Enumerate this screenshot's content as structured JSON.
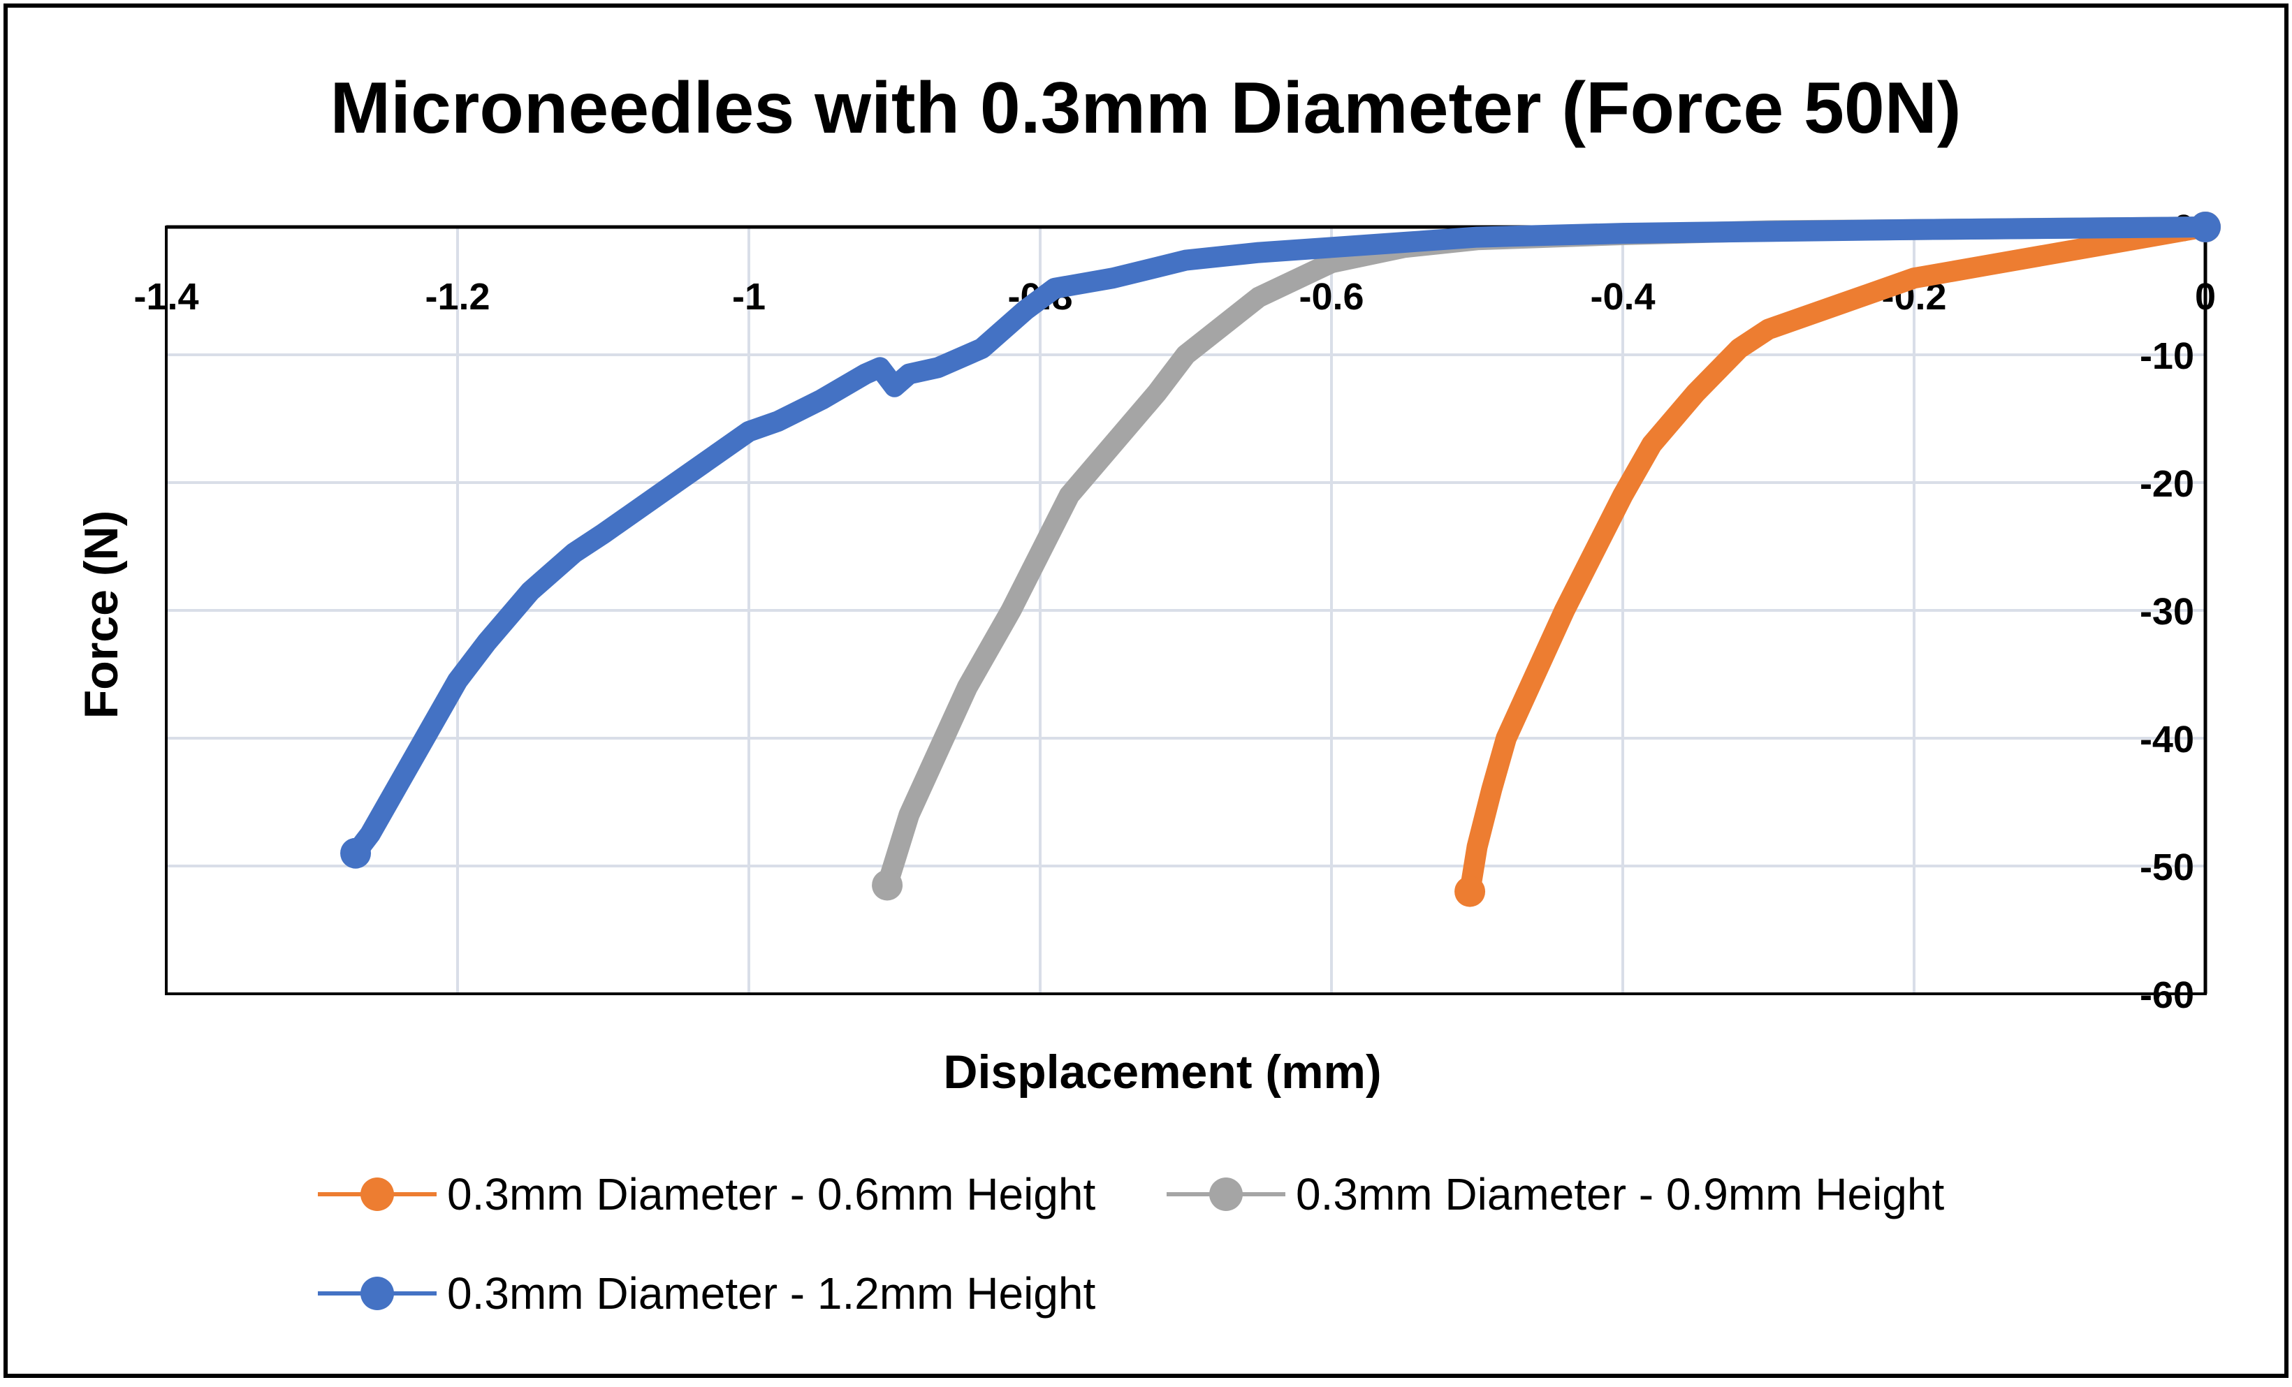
{
  "chart_data": {
    "type": "line",
    "title": "Microneedles with 0.3mm Diameter (Force 50N)",
    "xlabel": "Displacement (mm)",
    "ylabel": "Force (N)",
    "xlim": [
      -1.4,
      0
    ],
    "ylim": [
      -60,
      0
    ],
    "x_ticks": [
      -1.4,
      -1.2,
      -1,
      -0.8,
      -0.6,
      -0.4,
      -0.2,
      0
    ],
    "x_tick_labels": [
      "-1.4",
      "-1.2",
      "-1",
      "-0.8",
      "-0.6",
      "-0.4",
      "-0.2",
      "0"
    ],
    "y_ticks": [
      0,
      -10,
      -20,
      -30,
      -40,
      -50,
      -60
    ],
    "y_tick_labels": [
      "0",
      "-10",
      "-20",
      "-30",
      "-40",
      "-50",
      "-60"
    ],
    "grid": true,
    "x_axis_position": "top",
    "y_axis_position": "right",
    "legend_position": "bottom",
    "series": [
      {
        "name": "0.3mm Diameter - 0.6mm Height",
        "color": "#ED7D31",
        "x": [
          0,
          -0.05,
          -0.1,
          -0.15,
          -0.2,
          -0.25,
          -0.3,
          -0.32,
          -0.35,
          -0.38,
          -0.4,
          -0.42,
          -0.44,
          -0.46,
          -0.48,
          -0.49,
          -0.5,
          -0.505
        ],
        "y": [
          0,
          -1,
          -2,
          -3,
          -4,
          -6,
          -8,
          -9.5,
          -13,
          -17,
          -21,
          -25.5,
          -30,
          -35,
          -40,
          -44,
          -48.5,
          -52
        ]
      },
      {
        "name": "0.3mm Diameter - 0.9mm Height",
        "color": "#A5A5A5",
        "x": [
          0,
          -0.1,
          -0.2,
          -0.3,
          -0.4,
          -0.5,
          -0.55,
          -0.6,
          -0.65,
          -0.7,
          -0.72,
          -0.75,
          -0.78,
          -0.8,
          -0.82,
          -0.85,
          -0.87,
          -0.89,
          -0.905
        ],
        "y": [
          0,
          -0.1,
          -0.2,
          -0.3,
          -0.6,
          -1,
          -1.6,
          -2.8,
          -5.5,
          -10,
          -13,
          -17,
          -21,
          -25.5,
          -30,
          -36,
          -41,
          -46,
          -51.5
        ]
      },
      {
        "name": "0.3mm Diameter - 1.2mm Height",
        "color": "#4472C4",
        "x": [
          0,
          -0.2,
          -0.4,
          -0.5,
          -0.55,
          -0.6,
          -0.65,
          -0.7,
          -0.75,
          -0.77,
          -0.79,
          -0.81,
          -0.84,
          -0.87,
          -0.89,
          -0.9,
          -0.91,
          -0.92,
          -0.95,
          -0.98,
          -1,
          -1.05,
          -1.1,
          -1.12,
          -1.15,
          -1.18,
          -1.2,
          -1.22,
          -1.24,
          -1.26,
          -1.27
        ],
        "y": [
          0,
          -0.2,
          -0.5,
          -0.8,
          -1.2,
          -1.6,
          -2,
          -2.6,
          -4,
          -4.4,
          -4.8,
          -6.5,
          -9.5,
          -11,
          -11.5,
          -12.5,
          -11,
          -11.5,
          -13.5,
          -15.2,
          -16,
          -20,
          -24,
          -25.5,
          -28.5,
          -32.5,
          -35.5,
          -39.5,
          -43.5,
          -47.5,
          -49
        ]
      }
    ]
  }
}
